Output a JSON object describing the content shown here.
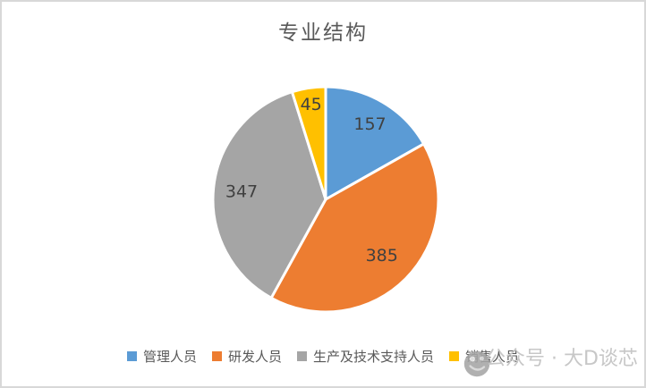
{
  "chart_data": {
    "type": "pie",
    "title": "专业结构",
    "categories": [
      "管理人员",
      "研发人员",
      "生产及技术支持人员",
      "销售人员"
    ],
    "values": [
      157,
      385,
      347,
      45
    ],
    "total": 934,
    "colors": [
      "#5B9BD5",
      "#ED7D31",
      "#A5A5A5",
      "#FFC000"
    ],
    "slice_border_color": "#FFFFFF",
    "data_label_color": "#404040",
    "title_color": "#595959",
    "legend_text_color": "#595959",
    "legend_position": "bottom",
    "start_angle_deg": 0,
    "direction": "clockwise"
  },
  "watermark": {
    "text": "公众号 · 大D谈芯",
    "logo": "da-d-tanxin-logo",
    "color": "#c7c7c7"
  },
  "frame": {
    "border_color": "#d8d8d8",
    "background": "#ffffff"
  }
}
